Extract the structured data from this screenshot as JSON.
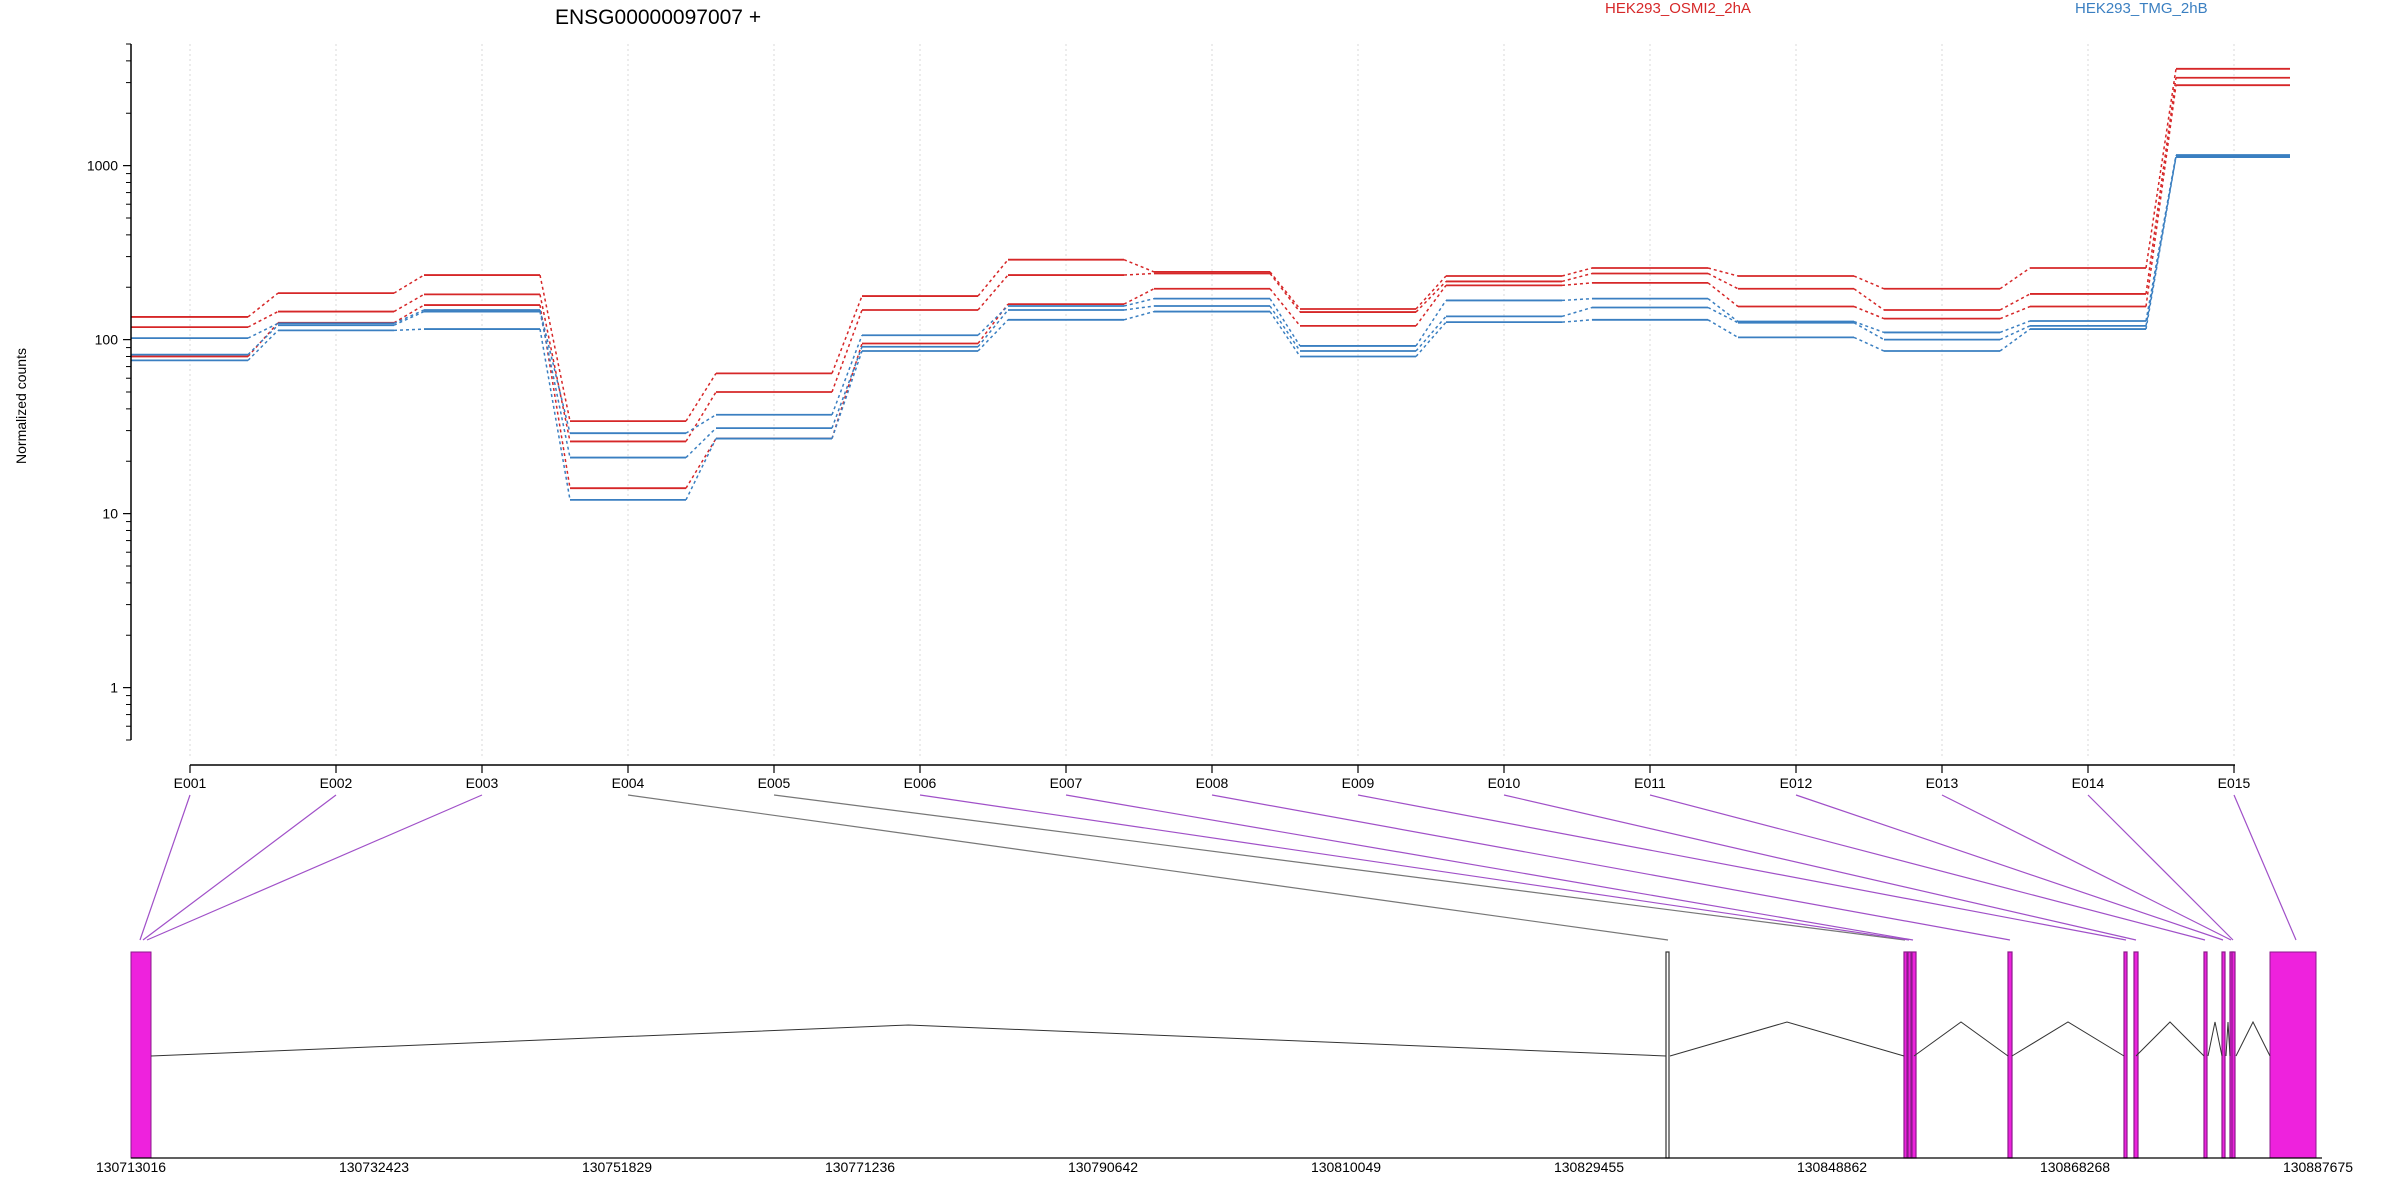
{
  "chart_data": {
    "type": "line",
    "title": "ENSG00000097007 +",
    "ylabel": "Normalized counts",
    "y_scale": "log",
    "ylim": [
      0.5,
      5000
    ],
    "y_ticks": [
      1,
      10,
      100,
      1000
    ],
    "y_tick_labels": [
      "1",
      "10",
      "100",
      "1000"
    ],
    "grid": "vertical dotted",
    "legend_placement": "top",
    "categories": [
      "E001",
      "E002",
      "E003",
      "E004",
      "E005",
      "E006",
      "E007",
      "E008",
      "E009",
      "E010",
      "E011",
      "E012",
      "E013",
      "E014",
      "E015"
    ],
    "series": [
      {
        "name": "HEK293_OSMI2_2hA",
        "color": "#d62728",
        "values": [
          135,
          185,
          235,
          34,
          64,
          178,
          288,
          245,
          150,
          232,
          258,
          232,
          196,
          258,
          3600
        ]
      },
      {
        "name": "",
        "color": "#d62728",
        "values": [
          118,
          145,
          182,
          26,
          50,
          148,
          235,
          240,
          144,
          216,
          240,
          196,
          148,
          183,
          3200
        ]
      },
      {
        "name": "",
        "color": "#d62728",
        "values": [
          80,
          125,
          158,
          14,
          27,
          95,
          160,
          196,
          120,
          205,
          212,
          155,
          132,
          155,
          2900
        ]
      },
      {
        "name": "",
        "color": "#3a7fc1",
        "values": [
          102,
          124,
          148,
          29,
          37,
          106,
          156,
          172,
          92,
          168,
          172,
          127,
          110,
          128,
          1150
        ]
      },
      {
        "name": "",
        "color": "#3a7fc1",
        "values": [
          82,
          121,
          145,
          21,
          31,
          91,
          148,
          156,
          86,
          136,
          153,
          125,
          100,
          120,
          1130
        ]
      },
      {
        "name": "HEK293_TMG_2hB",
        "color": "#3a7fc1",
        "values": [
          76,
          113,
          115,
          12,
          27,
          86,
          130,
          145,
          80,
          126,
          130,
          103,
          86,
          115,
          1120
        ]
      }
    ],
    "gene_model": {
      "genomic_ticks": [
        "130713016",
        "130732423",
        "130751829",
        "130771236",
        "130790642",
        "130810049",
        "130829455",
        "130848862",
        "130868268",
        "130887675"
      ],
      "exon_fill": "#ee22dd",
      "exon_stroke": "#8b1a8b",
      "connector_color": "#a050c8"
    }
  }
}
